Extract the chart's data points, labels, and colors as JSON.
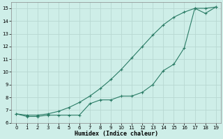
{
  "xlabel": "Humidex (Indice chaleur)",
  "x": [
    0,
    1,
    2,
    3,
    4,
    5,
    6,
    7,
    8,
    9,
    10,
    11,
    12,
    13,
    14,
    15,
    16,
    17,
    18,
    19
  ],
  "line1_y": [
    6.7,
    6.5,
    6.5,
    6.6,
    6.6,
    6.6,
    6.6,
    7.5,
    7.8,
    7.8,
    8.1,
    8.1,
    8.4,
    9.0,
    10.1,
    10.6,
    11.9,
    15.0,
    14.6,
    15.1
  ],
  "line2_y": [
    6.7,
    6.6,
    6.6,
    6.7,
    6.9,
    7.2,
    7.6,
    8.1,
    8.7,
    9.4,
    10.2,
    11.1,
    12.0,
    12.9,
    13.7,
    14.3,
    14.7,
    15.0,
    15.0,
    15.1
  ],
  "line_color": "#2a7b65",
  "bg_color": "#ceeee8",
  "grid_color": "#b8d8d2",
  "ylim": [
    6.0,
    15.5
  ],
  "xlim": [
    -0.5,
    19.5
  ],
  "yticks": [
    6,
    7,
    8,
    9,
    10,
    11,
    12,
    13,
    14,
    15
  ],
  "xticks": [
    0,
    1,
    2,
    3,
    4,
    5,
    6,
    7,
    8,
    9,
    10,
    11,
    12,
    13,
    14,
    15,
    16,
    17,
    18,
    19
  ]
}
